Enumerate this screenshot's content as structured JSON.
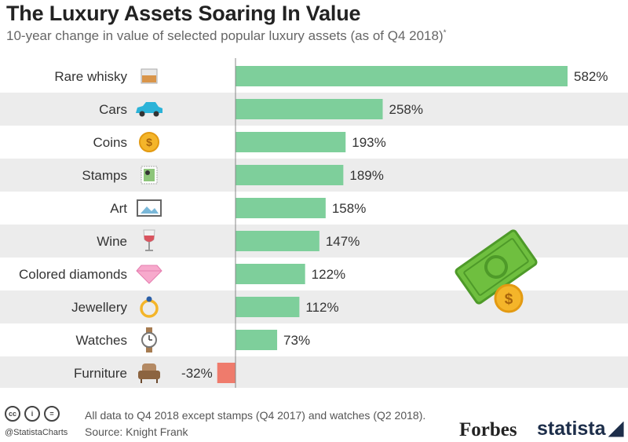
{
  "header": {
    "title": "The Luxury Assets Soaring In Value",
    "subtitle": "10-year change in value of selected popular luxury assets (as of Q4 2018)",
    "subtitle_mark": "*"
  },
  "chart_data": {
    "type": "bar",
    "orientation": "horizontal",
    "categories": [
      "Rare whisky",
      "Cars",
      "Coins",
      "Stamps",
      "Art",
      "Wine",
      "Colored diamonds",
      "Jewellery",
      "Watches",
      "Furniture"
    ],
    "values": [
      582,
      258,
      193,
      189,
      158,
      147,
      122,
      112,
      73,
      -32
    ],
    "value_labels": [
      "582%",
      "258%",
      "193%",
      "189%",
      "158%",
      "147%",
      "122%",
      "112%",
      "73%",
      "-32%"
    ],
    "icons": [
      "whisky-glass-icon",
      "car-icon",
      "coin-icon",
      "stamp-icon",
      "painting-icon",
      "wine-glass-icon",
      "diamond-icon",
      "ring-icon",
      "watch-icon",
      "armchair-icon"
    ],
    "unit": "%",
    "xlim": [
      -50,
      610
    ],
    "grid": false,
    "legend": "none",
    "colors": {
      "positive": "#7ecf9b",
      "negative": "#ef7b6c",
      "row_band": "#ececec"
    }
  },
  "footer": {
    "license_icons": [
      "cc",
      "i",
      "="
    ],
    "handle": "@StatistaCharts",
    "note": "All data to Q4 2018 except stamps (Q4 2017) and watches (Q2 2018).",
    "source": "Source: Knight Frank",
    "brand_forbes": "Forbes",
    "brand_statista": "statista"
  }
}
